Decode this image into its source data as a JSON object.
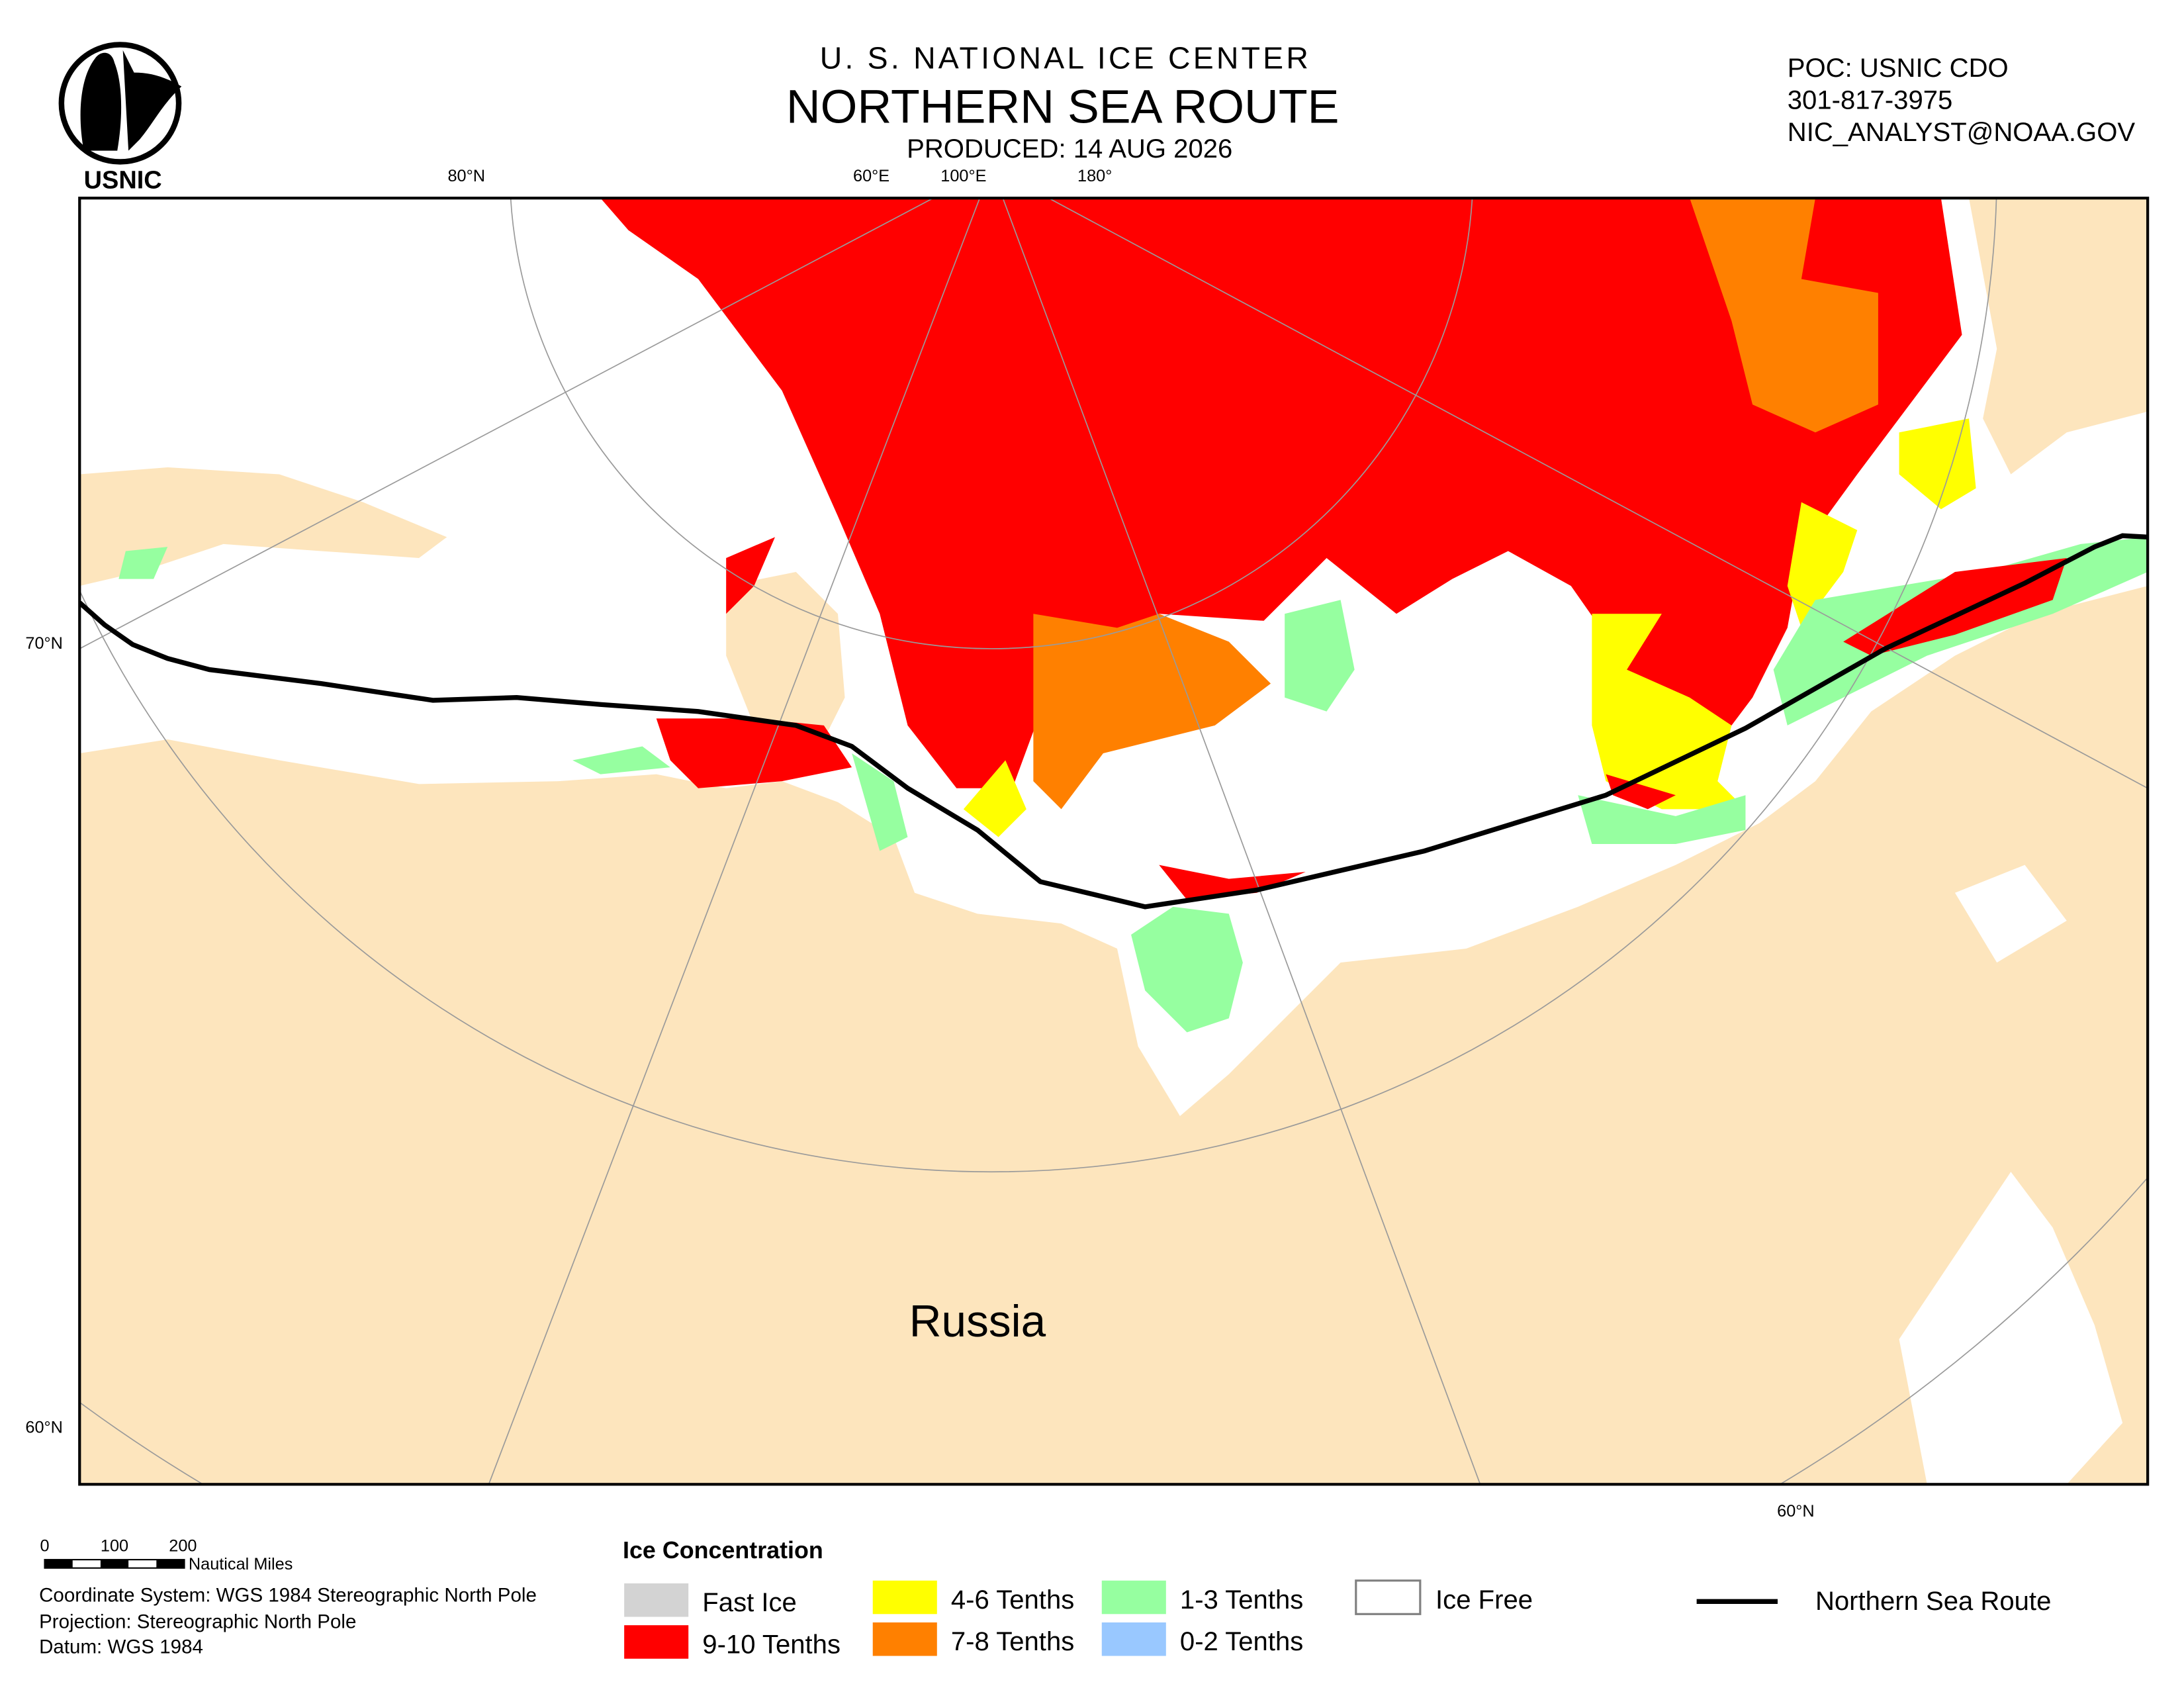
{
  "header": {
    "agency": "U. S. NATIONAL ICE CENTER",
    "title": "NORTHERN SEA ROUTE",
    "produced": "PRODUCED:  14 AUG 2026",
    "logo": "USNIC"
  },
  "contact": {
    "poc": "POC: USNIC CDO",
    "phone": "301-817-3975",
    "email": "NIC_ANALYST@NOAA.GOV"
  },
  "map": {
    "graticule_labels": [
      "80°N",
      "60°E",
      "100°E",
      "180°",
      "70°N",
      "60°N",
      "60°N"
    ],
    "place_label": "Russia"
  },
  "scale_bar": {
    "ticks": [
      "0",
      "100",
      "200"
    ],
    "unit": "Nautical Miles"
  },
  "info": [
    "Coordinate System: WGS 1984 Stereographic North Pole",
    "Projection: Stereographic North Pole",
    "Datum: WGS 1984"
  ],
  "legend": {
    "title": "Ice Concentration",
    "items": [
      "Fast Ice",
      "9-10 Tenths",
      "4-6 Tenths",
      "7-8 Tenths",
      "1-3 Tenths",
      "0-2 Tenths",
      "Ice Free"
    ],
    "route": "Northern Sea Route"
  }
}
